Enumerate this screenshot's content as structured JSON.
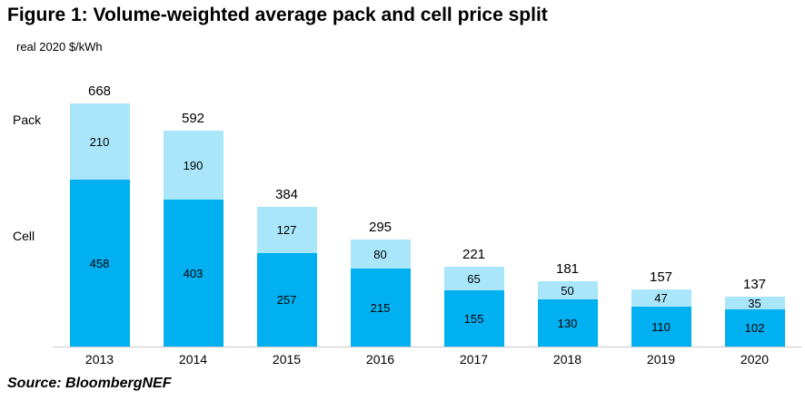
{
  "title": "Figure 1: Volume-weighted average pack and cell price split",
  "unit_label": "real 2020 $/kWh",
  "source": "Source: BloombergNEF",
  "chart_data": {
    "type": "bar",
    "stacked": true,
    "title": "Figure 1: Volume-weighted average pack and cell price split",
    "ylabel": "real 2020 $/kWh",
    "xlabel": "",
    "categories": [
      "2013",
      "2014",
      "2015",
      "2016",
      "2017",
      "2018",
      "2019",
      "2020"
    ],
    "series": [
      {
        "name": "Cell",
        "color": "#00b0f0",
        "values": [
          458,
          403,
          257,
          215,
          155,
          130,
          110,
          102
        ]
      },
      {
        "name": "Pack",
        "color": "#a9e6fa",
        "values": [
          210,
          190,
          127,
          80,
          65,
          50,
          47,
          35
        ]
      }
    ],
    "totals": [
      668,
      592,
      384,
      295,
      221,
      181,
      157,
      137
    ],
    "ylim": [
      0,
      668
    ],
    "grid": false,
    "legend_position": "left-axis-labels",
    "axis_labels": {
      "pack": "Pack",
      "cell": "Cell"
    },
    "source": "Source: BloombergNEF"
  }
}
